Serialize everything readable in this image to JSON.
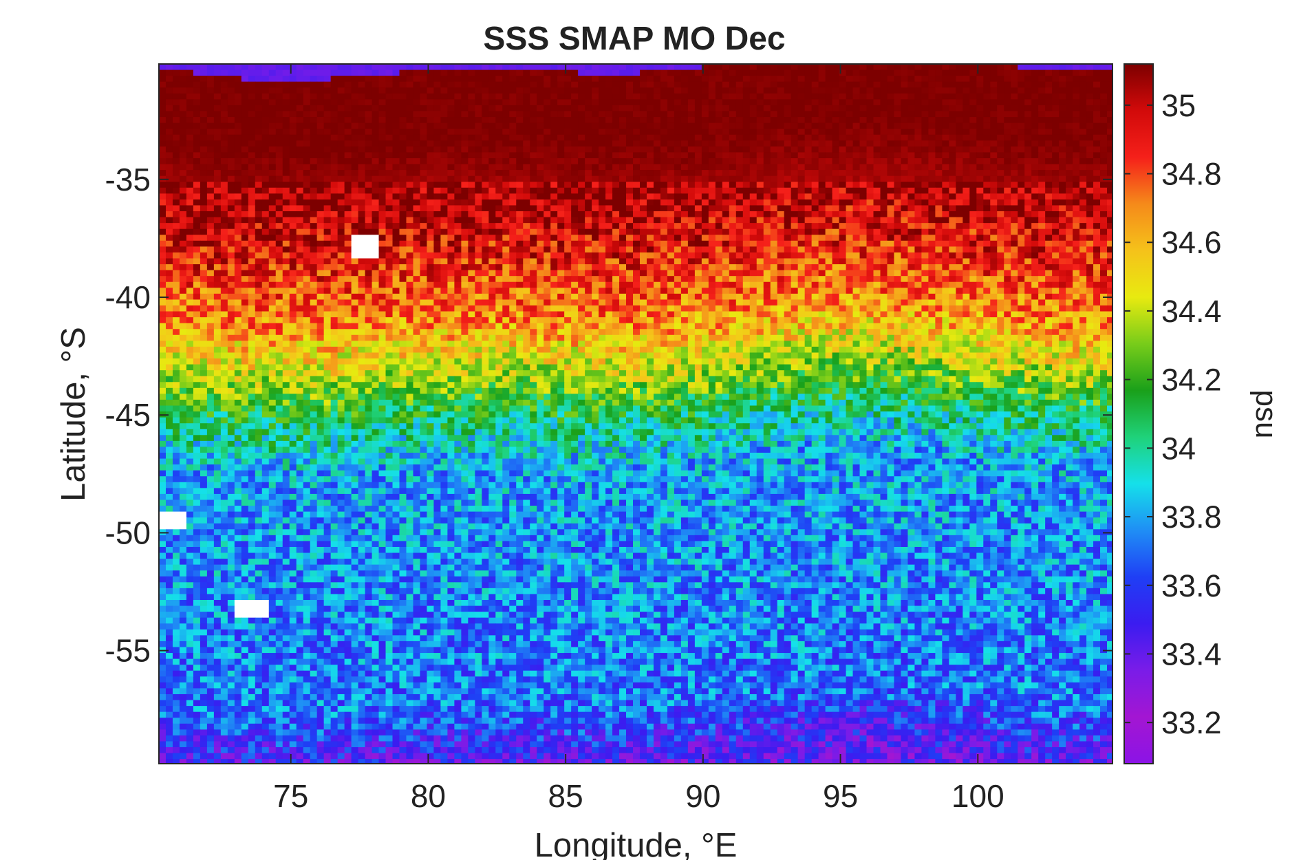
{
  "chart_data": {
    "type": "heatmap",
    "title": "SSS SMAP MO Dec",
    "xlabel": "Longitude, °E",
    "ylabel": "Latitude, °S",
    "colorbar_label": "psu",
    "xlim": [
      70.2,
      104.9
    ],
    "ylim": [
      -59.8,
      -30.1
    ],
    "xticks": [
      75,
      80,
      85,
      90,
      95,
      100
    ],
    "xtick_labels": [
      "75",
      "80",
      "85",
      "90",
      "95",
      "100"
    ],
    "yticks": [
      -35,
      -40,
      -45,
      -50,
      -55
    ],
    "ytick_labels": [
      "-35",
      "-40",
      "-45",
      "-50",
      "-55"
    ],
    "clim": [
      33.08,
      35.12
    ],
    "colorbar_ticks": [
      33.2,
      33.4,
      33.6,
      33.8,
      34,
      34.2,
      34.4,
      34.6,
      34.8,
      35
    ],
    "colorbar_tick_labels": [
      "33.2",
      "33.4",
      "33.6",
      "33.8",
      "34",
      "34.2",
      "34.4",
      "34.6",
      "34.8",
      "35"
    ],
    "colormap": [
      "#8b14e6",
      "#a316d2",
      "#7a1ce8",
      "#3b1cf0",
      "#1f3ff5",
      "#1f8ef5",
      "#15e0ea",
      "#1fd27a",
      "#1aa01a",
      "#78cc1a",
      "#e8ea10",
      "#f5c21a",
      "#f58a1a",
      "#f5201a",
      "#d20a0a",
      "#7d0000"
    ],
    "grid": false,
    "data_description": {
      "latitude_profile": [
        {
          "lat": -30.1,
          "value": 35.12
        },
        {
          "lat": -33.0,
          "value": 35.12
        },
        {
          "lat": -35.5,
          "value": 35.05
        },
        {
          "lat": -38.0,
          "value": 34.9
        },
        {
          "lat": -40.5,
          "value": 34.7
        },
        {
          "lat": -42.5,
          "value": 34.45
        },
        {
          "lat": -44.5,
          "value": 34.1
        },
        {
          "lat": -47.0,
          "value": 33.8
        },
        {
          "lat": -52.0,
          "value": 33.75
        },
        {
          "lat": -57.0,
          "value": 33.7
        },
        {
          "lat": -59.8,
          "value": 33.4
        }
      ],
      "missing_islands": [
        {
          "lon": 70.6,
          "lat": -49.4
        },
        {
          "lon": 73.5,
          "lat": -53.1
        },
        {
          "lon": 77.6,
          "lat": -37.8
        }
      ]
    }
  }
}
